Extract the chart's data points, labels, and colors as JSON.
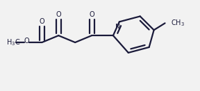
{
  "bg_color": "#f2f2f2",
  "line_color": "#1a1a3a",
  "line_width": 1.6,
  "font_size": 7.0,
  "figsize": [
    2.88,
    1.31
  ],
  "dpi": 100,
  "xlim": [
    0,
    288
  ],
  "ylim": [
    0,
    131
  ]
}
